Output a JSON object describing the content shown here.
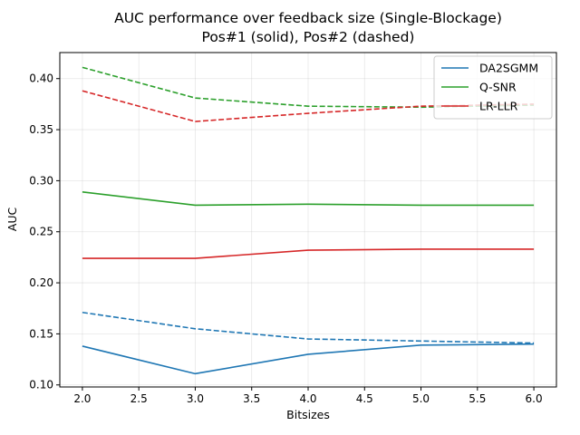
{
  "chart_data": {
    "type": "line",
    "title": "AUC performance over feedback size (Single-Blockage)",
    "subtitle": "Pos#1 (solid), Pos#2 (dashed)",
    "xlabel": "Bitsizes",
    "ylabel": "AUC",
    "xlim": [
      1.8,
      6.2
    ],
    "ylim": [
      0.098,
      0.4255
    ],
    "xticks": [
      2.0,
      2.5,
      3.0,
      3.5,
      4.0,
      4.5,
      5.0,
      5.5,
      6.0
    ],
    "xtick_labels": [
      "2.0",
      "2.5",
      "3.0",
      "3.5",
      "4.0",
      "4.5",
      "5.0",
      "5.5",
      "6.0"
    ],
    "yticks": [
      0.1,
      0.15,
      0.2,
      0.25,
      0.3,
      0.35,
      0.4
    ],
    "ytick_labels": [
      "0.10",
      "0.15",
      "0.20",
      "0.25",
      "0.30",
      "0.35",
      "0.40"
    ],
    "grid": true,
    "legend_position": "top-right",
    "x": [
      2,
      3,
      4,
      5,
      6
    ],
    "series": [
      {
        "name": "DA2SGMM",
        "color": "#1f77b4",
        "style": "solid",
        "in_legend": true,
        "values": [
          0.138,
          0.111,
          0.13,
          0.139,
          0.14
        ]
      },
      {
        "name": "DA2SGMM",
        "color": "#1f77b4",
        "style": "dashed",
        "in_legend": false,
        "values": [
          0.171,
          0.155,
          0.145,
          0.143,
          0.141
        ]
      },
      {
        "name": "Q-SNR",
        "color": "#2ca02c",
        "style": "solid",
        "in_legend": true,
        "values": [
          0.289,
          0.276,
          0.277,
          0.276,
          0.276
        ]
      },
      {
        "name": "Q-SNR",
        "color": "#2ca02c",
        "style": "dashed",
        "in_legend": false,
        "values": [
          0.411,
          0.381,
          0.373,
          0.372,
          0.374
        ]
      },
      {
        "name": "LR-LLR",
        "color": "#d62728",
        "style": "solid",
        "in_legend": true,
        "values": [
          0.224,
          0.224,
          0.232,
          0.233,
          0.233
        ]
      },
      {
        "name": "LR-LLR",
        "color": "#d62728",
        "style": "dashed",
        "in_legend": false,
        "values": [
          0.388,
          0.358,
          0.366,
          0.373,
          0.375
        ]
      }
    ]
  }
}
